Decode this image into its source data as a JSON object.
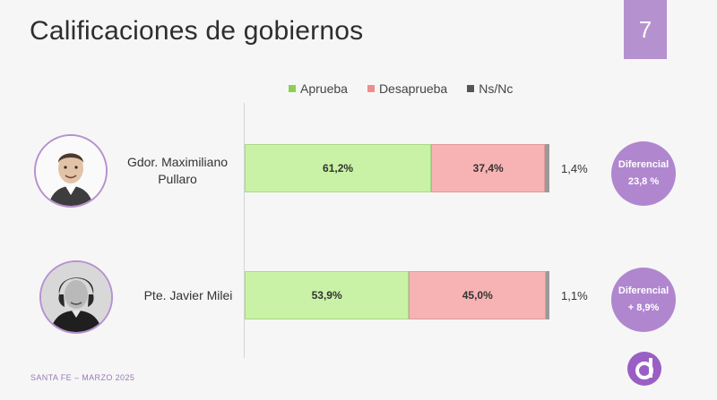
{
  "header": {
    "title": "Calificaciones de gobiernos",
    "page_number": "7"
  },
  "legend": [
    {
      "label": "Aprueba",
      "color": "#8ad14f"
    },
    {
      "label": "Desaprueba",
      "color": "#f08c8c"
    },
    {
      "label": "Ns/Nc",
      "color": "#555555"
    }
  ],
  "chart_data": {
    "type": "bar",
    "orientation": "horizontal",
    "stacked": true,
    "categories": [
      "Gdor. Maximiliano Pullaro",
      "Pte. Javier Milei"
    ],
    "series": [
      {
        "name": "Aprueba",
        "values": [
          61.2,
          53.9
        ],
        "labels": [
          "61,2%",
          "53,9%"
        ],
        "color": "#c9f2a6"
      },
      {
        "name": "Desaprueba",
        "values": [
          37.4,
          45.0
        ],
        "labels": [
          "37,4%",
          "45,0%"
        ],
        "color": "#f7b3b3"
      },
      {
        "name": "Ns/Nc",
        "values": [
          1.4,
          1.1
        ],
        "labels": [
          "1,4%",
          "1,1%"
        ],
        "color": "#9a9a9a"
      }
    ],
    "xlim": [
      0,
      100
    ],
    "grid": false,
    "legend_position": "top"
  },
  "rows": [
    {
      "name_line1": "Gdor. Maximiliano",
      "name_line2": "Pullaro",
      "approve_label": "61,2%",
      "disapprove_label": "37,4%",
      "nsnc_label": "1,4%",
      "diff_title": "Diferencial",
      "diff_value": "23,8 %"
    },
    {
      "name_line1": "Pte. Javier Milei",
      "name_line2": "",
      "approve_label": "53,9%",
      "disapprove_label": "45,0%",
      "nsnc_label": "1,1%",
      "diff_title": "Diferencial",
      "diff_value": "+ 8,9%"
    }
  ],
  "footer": {
    "text": "SANTA FE – MARZO 2025"
  },
  "colors": {
    "accent": "#b691cf",
    "logo": "#9a5fc4"
  }
}
